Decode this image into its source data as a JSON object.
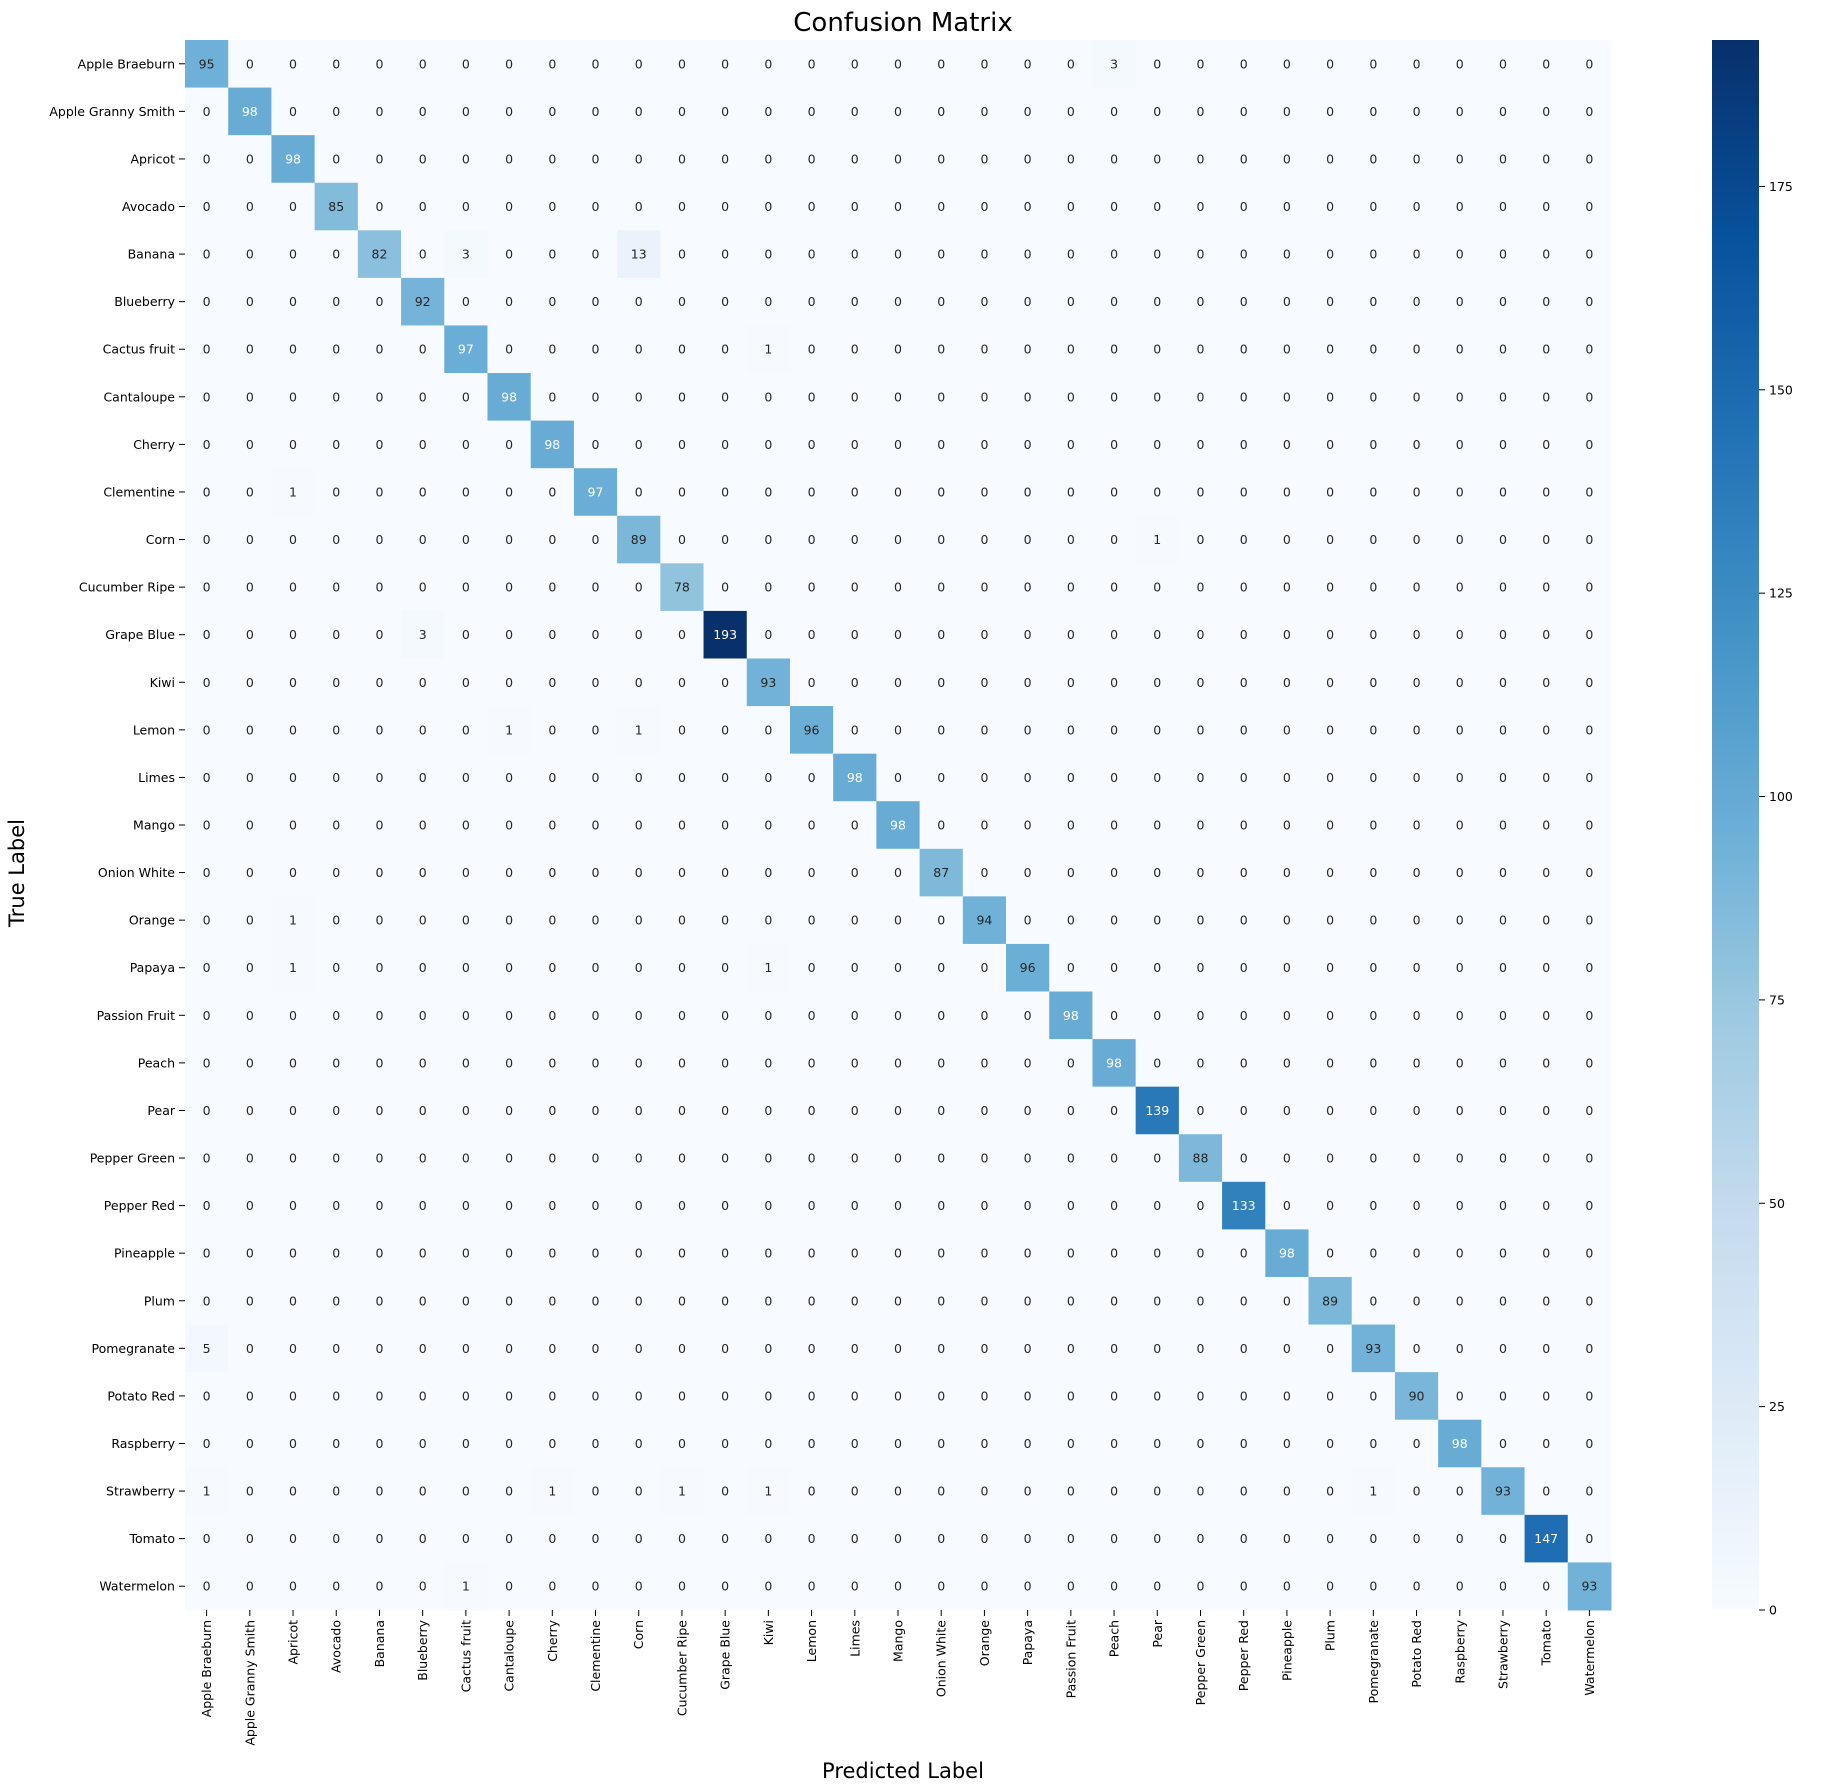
{
  "chart_data": {
    "type": "heatmap",
    "title": "Confusion Matrix",
    "xlabel": "Predicted Label",
    "ylabel": "True Label",
    "colormap": "Blues",
    "colorbar": {
      "min": 0,
      "max": 193,
      "ticks": [
        0,
        25,
        50,
        75,
        100,
        125,
        150,
        175
      ]
    },
    "labels": [
      "Apple Braeburn",
      "Apple Granny Smith",
      "Apricot",
      "Avocado",
      "Banana",
      "Blueberry",
      "Cactus fruit",
      "Cantaloupe",
      "Cherry",
      "Clementine",
      "Corn",
      "Cucumber Ripe",
      "Grape Blue",
      "Kiwi",
      "Lemon",
      "Limes",
      "Mango",
      "Onion White",
      "Orange",
      "Papaya",
      "Passion Fruit",
      "Peach",
      "Pear",
      "Pepper Green",
      "Pepper Red",
      "Pineapple",
      "Plum",
      "Pomegranate",
      "Potato Red",
      "Raspberry",
      "Strawberry",
      "Tomato",
      "Watermelon"
    ],
    "diagonal": [
      95,
      98,
      98,
      85,
      82,
      92,
      97,
      98,
      98,
      97,
      89,
      78,
      193,
      93,
      96,
      98,
      98,
      87,
      94,
      96,
      98,
      98,
      139,
      88,
      133,
      98,
      89,
      93,
      90,
      98,
      93,
      147,
      93
    ],
    "off_diagonal": [
      {
        "row": 0,
        "col": 21,
        "value": 3
      },
      {
        "row": 4,
        "col": 6,
        "value": 3
      },
      {
        "row": 4,
        "col": 10,
        "value": 13
      },
      {
        "row": 6,
        "col": 13,
        "value": 1
      },
      {
        "row": 9,
        "col": 2,
        "value": 1
      },
      {
        "row": 10,
        "col": 22,
        "value": 1
      },
      {
        "row": 12,
        "col": 5,
        "value": 3
      },
      {
        "row": 14,
        "col": 7,
        "value": 1
      },
      {
        "row": 14,
        "col": 10,
        "value": 1
      },
      {
        "row": 18,
        "col": 2,
        "value": 1
      },
      {
        "row": 19,
        "col": 2,
        "value": 1
      },
      {
        "row": 19,
        "col": 13,
        "value": 1
      },
      {
        "row": 27,
        "col": 0,
        "value": 5
      },
      {
        "row": 30,
        "col": 0,
        "value": 1
      },
      {
        "row": 30,
        "col": 8,
        "value": 1
      },
      {
        "row": 30,
        "col": 11,
        "value": 1
      },
      {
        "row": 30,
        "col": 13,
        "value": 1
      },
      {
        "row": 30,
        "col": 27,
        "value": 1
      },
      {
        "row": 32,
        "col": 6,
        "value": 1
      }
    ]
  }
}
